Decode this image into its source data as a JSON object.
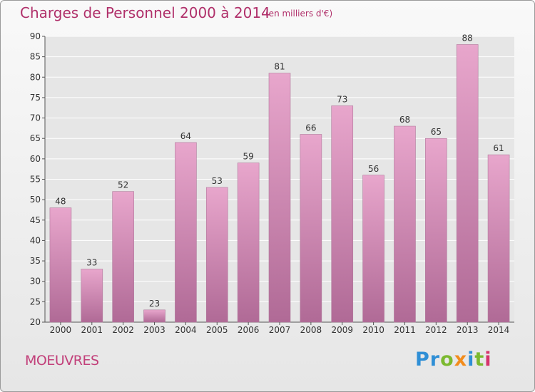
{
  "header": {
    "title": "Charges de Personnel 2000 à 2014",
    "unit": "(en milliers d'€)"
  },
  "footer": {
    "commune": "MOEUVRES",
    "logo": [
      {
        "ch": "P",
        "color": "#2f8fd6"
      },
      {
        "ch": "r",
        "color": "#2f8fd6"
      },
      {
        "ch": "o",
        "color": "#7bb92f"
      },
      {
        "ch": "x",
        "color": "#f28c1c"
      },
      {
        "ch": "i",
        "color": "#2f8fd6"
      },
      {
        "ch": "t",
        "color": "#7bb92f"
      },
      {
        "ch": "i",
        "color": "#d6336c"
      }
    ]
  },
  "colors": {
    "bar_light": "#e8a6cc",
    "bar_dark": "#b06a96",
    "title": "#b0306a",
    "grid": "#ffffff"
  },
  "chart_data": {
    "type": "bar",
    "title": "Charges de Personnel 2000 à 2014",
    "subtitle": "(en milliers d'€)",
    "xlabel": "",
    "ylabel": "",
    "categories": [
      "2000",
      "2001",
      "2002",
      "2003",
      "2004",
      "2005",
      "2006",
      "2007",
      "2008",
      "2009",
      "2010",
      "2011",
      "2012",
      "2013",
      "2014"
    ],
    "values": [
      48,
      33,
      52,
      23,
      64,
      53,
      59,
      81,
      66,
      73,
      56,
      68,
      65,
      88,
      61
    ],
    "ylim": [
      20,
      90
    ],
    "yticks": [
      20,
      25,
      30,
      35,
      40,
      45,
      50,
      55,
      60,
      65,
      70,
      75,
      80,
      85,
      90
    ],
    "grid": true,
    "legend": "none"
  }
}
